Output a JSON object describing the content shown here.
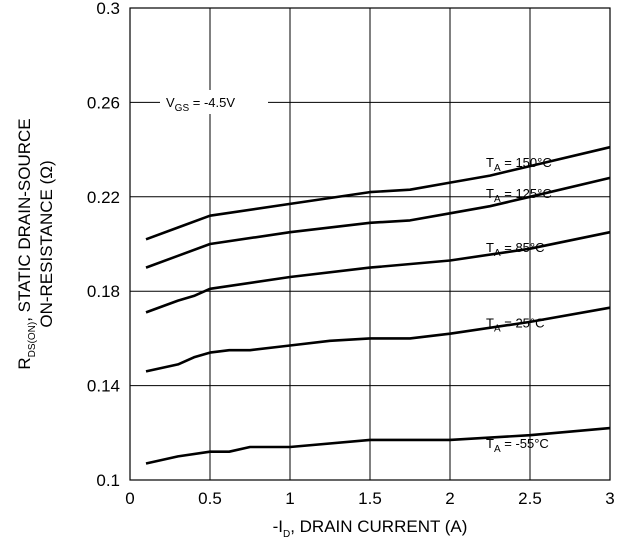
{
  "chart_data": {
    "type": "line",
    "xlabel_main": "-I",
    "xlabel_sub": "D",
    "xlabel_rest": ", DRAIN CURRENT (A)",
    "ylabel_line1_main": "R",
    "ylabel_line1_sub": "DS(ON)",
    "ylabel_line1_rest": ", STATIC DRAIN-SOURCE",
    "ylabel_line2": "ON-RESISTANCE (Ω)",
    "xlim": [
      0,
      3
    ],
    "ylim": [
      0.1,
      0.3
    ],
    "x_ticks": [
      0,
      0.5,
      1,
      1.5,
      2,
      2.5,
      3
    ],
    "x_tick_labels": [
      "0",
      "0.5",
      "1",
      "1.5",
      "2",
      "2.5",
      "3"
    ],
    "y_ticks": [
      0.1,
      0.14,
      0.18,
      0.22,
      0.26,
      0.3
    ],
    "y_tick_labels": [
      "0.1",
      "0.14",
      "0.18",
      "0.22",
      "0.26",
      "0.3"
    ],
    "grid": true,
    "condition": {
      "main": "V",
      "sub": "GS",
      "rest": " = -4.5V"
    },
    "series": [
      {
        "label_main": "T",
        "label_sub": "A",
        "label_rest": " = 150°C",
        "x": [
          0.1,
          0.3,
          0.5,
          1.0,
          1.5,
          1.75,
          2.0,
          2.25,
          2.5,
          3.0
        ],
        "y": [
          0.202,
          0.207,
          0.212,
          0.217,
          0.222,
          0.223,
          0.226,
          0.229,
          0.233,
          0.241
        ]
      },
      {
        "label_main": "T",
        "label_sub": "A",
        "label_rest": " = 125°C",
        "x": [
          0.1,
          0.3,
          0.5,
          1.0,
          1.5,
          1.75,
          2.0,
          2.25,
          2.5,
          3.0
        ],
        "y": [
          0.19,
          0.195,
          0.2,
          0.205,
          0.209,
          0.21,
          0.213,
          0.216,
          0.22,
          0.228
        ]
      },
      {
        "label_main": "T",
        "label_sub": "A",
        "label_rest": " = 85°C",
        "x": [
          0.1,
          0.3,
          0.4,
          0.5,
          1.0,
          1.5,
          2.0,
          2.5,
          3.0
        ],
        "y": [
          0.171,
          0.176,
          0.178,
          0.181,
          0.186,
          0.19,
          0.193,
          0.198,
          0.205
        ]
      },
      {
        "label_main": "T",
        "label_sub": "A",
        "label_rest": " = 25°C",
        "x": [
          0.1,
          0.3,
          0.4,
          0.5,
          0.62,
          0.75,
          1.0,
          1.25,
          1.5,
          1.75,
          2.0,
          2.5,
          3.0
        ],
        "y": [
          0.146,
          0.149,
          0.152,
          0.154,
          0.155,
          0.155,
          0.157,
          0.159,
          0.16,
          0.16,
          0.162,
          0.167,
          0.173
        ]
      },
      {
        "label_main": "T",
        "label_sub": "A",
        "label_rest": " = -55°C",
        "x": [
          0.1,
          0.3,
          0.5,
          0.62,
          0.75,
          1.0,
          1.5,
          2.0,
          2.5,
          3.0
        ],
        "y": [
          0.107,
          0.11,
          0.112,
          0.112,
          0.114,
          0.114,
          0.117,
          0.117,
          0.119,
          0.122
        ]
      }
    ]
  }
}
